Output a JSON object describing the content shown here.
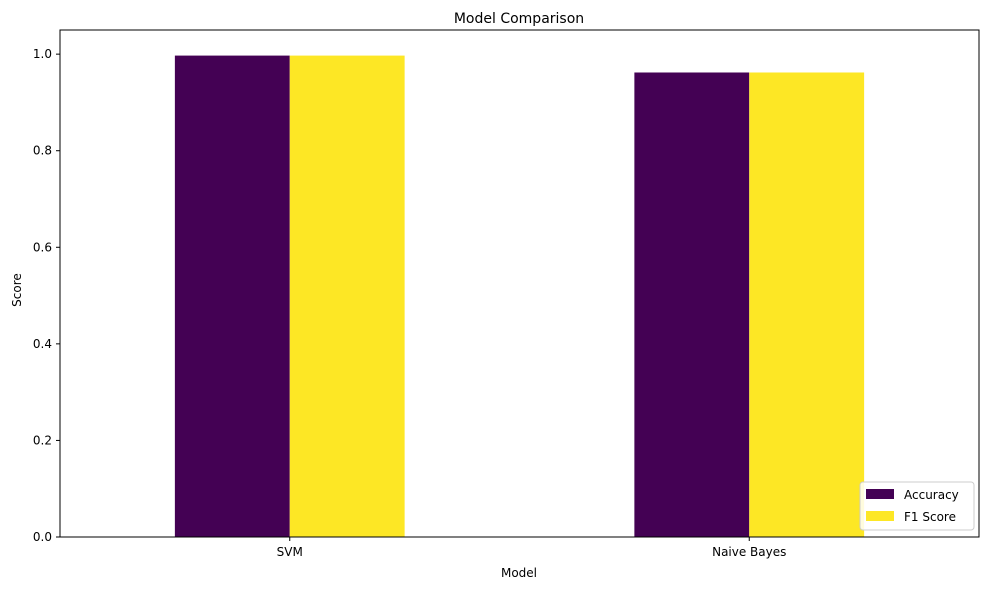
{
  "chart_data": {
    "type": "bar",
    "title": "Model Comparison",
    "xlabel": "Model",
    "ylabel": "Score",
    "categories": [
      "SVM",
      "Naive Bayes"
    ],
    "series": [
      {
        "name": "Accuracy",
        "color": "#440154",
        "values": [
          0.997,
          0.962
        ]
      },
      {
        "name": "F1 Score",
        "color": "#fde725",
        "values": [
          0.997,
          0.962
        ]
      }
    ],
    "ylim": [
      0,
      1.05
    ],
    "yticks": [
      0.0,
      0.2,
      0.4,
      0.6,
      0.8,
      1.0
    ],
    "ytick_labels": [
      "0.0",
      "0.2",
      "0.4",
      "0.6",
      "0.8",
      "1.0"
    ],
    "grid": false,
    "legend_position": "lower-right"
  }
}
